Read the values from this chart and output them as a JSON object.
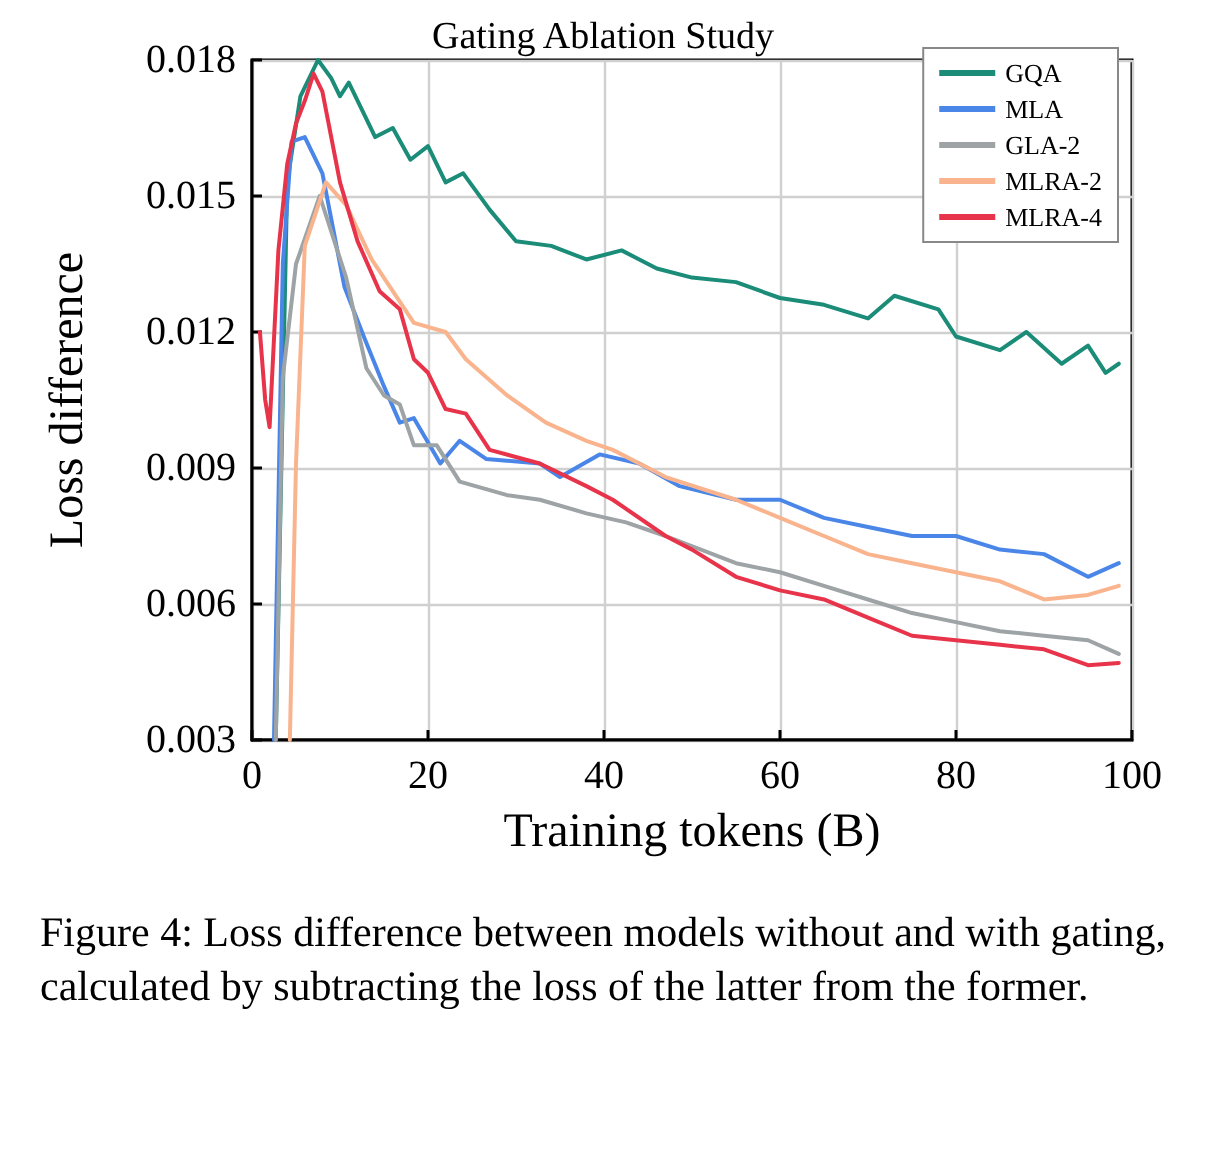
{
  "chart_data": {
    "type": "line",
    "title": "Gating Ablation Study",
    "xlabel": "Training tokens (B)",
    "ylabel": "Loss difference",
    "annotations": [
      "Figure 4: Loss difference between models without and with gating, calculated by subtracting the loss of the latter from the former."
    ],
    "xlim": [
      0,
      100
    ],
    "xticks": [
      0,
      20,
      40,
      60,
      80,
      100
    ],
    "ylim": [
      0.003,
      0.018
    ],
    "yticks": [
      0.003,
      0.006,
      0.009,
      0.012,
      0.015,
      0.018
    ],
    "grid": true,
    "legend": "top right",
    "marker": "none",
    "line_style": "solid",
    "series": [
      {
        "name": "GQA",
        "color": "#1a8c78",
        "x": [
          2.7,
          4,
          5.5,
          7.5,
          9,
          10,
          11,
          14,
          16,
          18,
          20,
          22,
          24,
          27,
          30,
          34,
          38,
          42,
          46,
          50,
          55,
          60,
          65,
          70,
          73,
          78,
          80,
          85,
          88,
          92,
          95,
          97,
          98.5
        ],
        "values": [
          0.003,
          0.0153,
          0.0172,
          0.018,
          0.0176,
          0.0172,
          0.0175,
          0.0163,
          0.0165,
          0.0158,
          0.0161,
          0.0153,
          0.0155,
          0.0147,
          0.014,
          0.0139,
          0.0136,
          0.0138,
          0.0134,
          0.0132,
          0.0131,
          0.01275,
          0.0126,
          0.0123,
          0.0128,
          0.0125,
          0.0119,
          0.0116,
          0.012,
          0.0113,
          0.0117,
          0.0111,
          0.0113
        ]
      },
      {
        "name": "MLA",
        "color": "#4a86e8",
        "x": [
          2.5,
          3.5,
          4.5,
          6,
          8,
          10.5,
          12.7,
          15,
          16.8,
          18.4,
          21.4,
          23.6,
          26.6,
          32.7,
          35,
          39.5,
          44,
          48.6,
          55,
          60,
          65,
          70,
          75,
          80,
          85,
          90,
          95,
          98.5
        ],
        "values": [
          0.003,
          0.0135,
          0.0162,
          0.0163,
          0.0155,
          0.013,
          0.0119,
          0.0108,
          0.01,
          0.0101,
          0.0091,
          0.0096,
          0.0092,
          0.0091,
          0.0088,
          0.0093,
          0.0091,
          0.0086,
          0.0083,
          0.0083,
          0.0079,
          0.0077,
          0.0075,
          0.0075,
          0.0072,
          0.0071,
          0.0066,
          0.0069
        ]
      },
      {
        "name": "GLA-2",
        "color": "#9ea3a6",
        "x": [
          2.7,
          3.5,
          5,
          7.7,
          10.7,
          13,
          15,
          16.8,
          18.4,
          21,
          23.6,
          29,
          32.7,
          38,
          42.5,
          47,
          55,
          60,
          65,
          70,
          75,
          80,
          85,
          90,
          95,
          98.5
        ],
        "values": [
          0.003,
          0.011,
          0.0135,
          0.015,
          0.0132,
          0.0112,
          0.0106,
          0.0104,
          0.0095,
          0.0095,
          0.0087,
          0.0084,
          0.0083,
          0.008,
          0.0078,
          0.0075,
          0.0069,
          0.0067,
          0.0064,
          0.0061,
          0.0058,
          0.0056,
          0.0054,
          0.0053,
          0.0052,
          0.0049
        ]
      },
      {
        "name": "MLRA-2",
        "color": "#f9b48e",
        "x": [
          4.3,
          5,
          6,
          8.4,
          10.7,
          13.6,
          18.4,
          22,
          24.3,
          29,
          33.4,
          38,
          41,
          47,
          55,
          60,
          65,
          70,
          75,
          80,
          85,
          90,
          95,
          98.5
        ],
        "values": [
          0.003,
          0.0091,
          0.0139,
          0.0153,
          0.0148,
          0.0136,
          0.0122,
          0.012,
          0.0114,
          0.0106,
          0.01,
          0.0096,
          0.0094,
          0.0088,
          0.0083,
          0.0079,
          0.0075,
          0.0071,
          0.0069,
          0.0067,
          0.0065,
          0.0061,
          0.0062,
          0.0064
        ]
      },
      {
        "name": "MLRA-4",
        "color": "#e8344a",
        "x": [
          0.9,
          1.5,
          2,
          3,
          4,
          5,
          6,
          7,
          8,
          10,
          12,
          14.5,
          16.8,
          18.4,
          20,
          22,
          24.3,
          27,
          32.7,
          38,
          41,
          47,
          50,
          55,
          60,
          65,
          70,
          75,
          80,
          85,
          90,
          95,
          98.5
        ],
        "values": [
          0.012,
          0.0105,
          0.0099,
          0.0138,
          0.0157,
          0.0166,
          0.0171,
          0.0177,
          0.0173,
          0.0153,
          0.014,
          0.0129,
          0.0125,
          0.0114,
          0.0111,
          0.0103,
          0.0102,
          0.0094,
          0.0091,
          0.0086,
          0.0083,
          0.0075,
          0.0072,
          0.0066,
          0.0063,
          0.0061,
          0.0057,
          0.0053,
          0.0052,
          0.0051,
          0.005,
          0.00465,
          0.0047
        ]
      }
    ]
  }
}
